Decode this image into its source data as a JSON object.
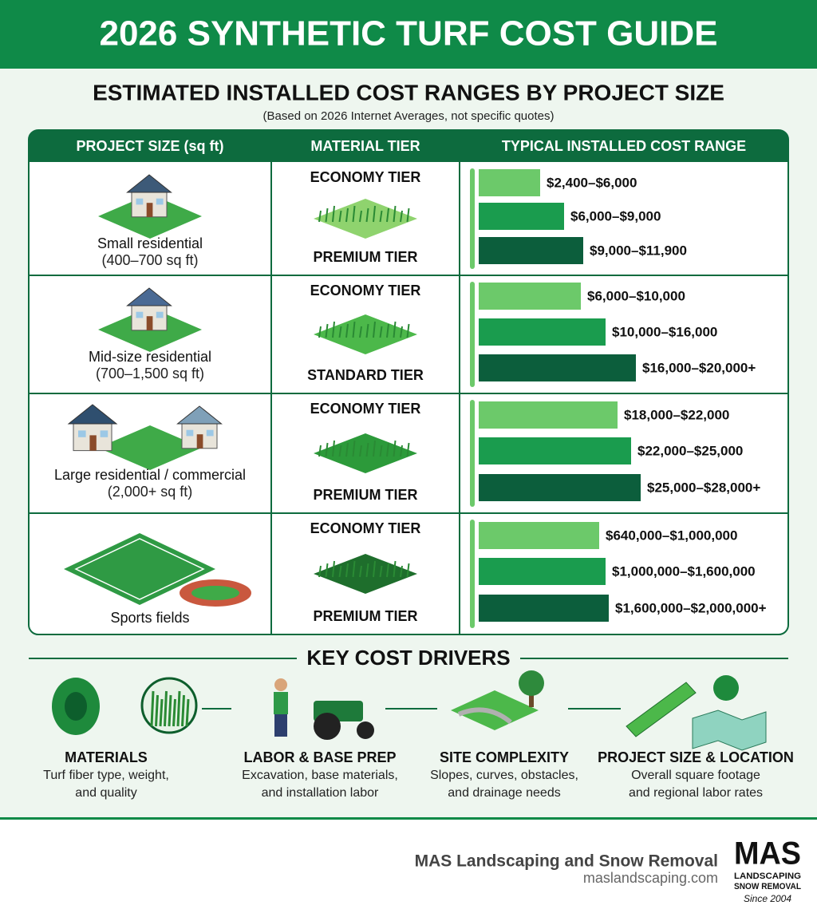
{
  "header": {
    "title": "2026 SYNTHETIC TURF COST GUIDE"
  },
  "table": {
    "title": "ESTIMATED INSTALLED COST RANGES BY PROJECT SIZE",
    "note": "(Based on 2026 Internet Averages, not specific quotes)",
    "columns": [
      "PROJECT SIZE (sq ft)",
      "MATERIAL TIER",
      "TYPICAL INSTALLED COST RANGE"
    ],
    "rows": [
      {
        "size": "Small residential",
        "range": "(400–700 sq ft)",
        "tiers": [
          "ECONOMY TIER",
          "PREMIUM TIER"
        ],
        "costs": [
          "$2,400–$6,000",
          "$6,000–$9,000",
          "$9,000–$11,900"
        ]
      },
      {
        "size": "Mid-size residential",
        "range": "(700–1,500 sq ft)",
        "tiers": [
          "ECONOMY TIER",
          "STANDARD TIER"
        ],
        "costs": [
          "$6,000–$10,000",
          "$10,000–$16,000",
          "$16,000–$20,000+"
        ]
      },
      {
        "size": "Large residential / commercial",
        "range": "(2,000+ sq ft)",
        "tiers": [
          "ECONOMY TIER",
          "PREMIUM TIER"
        ],
        "costs": [
          "$18,000–$22,000",
          "$22,000–$25,000",
          "$25,000–$28,000+"
        ]
      },
      {
        "size": "Sports fields",
        "tiers": [
          "ECONOMY TIER",
          "PREMIUM TIER"
        ],
        "costs": [
          "$640,000–$1,000,000",
          "$1,000,000–$1,600,000",
          "$1,600,000–$2,000,000+"
        ]
      }
    ]
  },
  "drivers": {
    "title": "KEY COST DRIVERS",
    "items": [
      {
        "title": "MATERIALS",
        "lines": [
          "Turf fiber type, weight,",
          "and quality"
        ]
      },
      {
        "title": "LABOR & BASE PREP",
        "lines": [
          "Excavation, base materials,",
          "and installation labor"
        ]
      },
      {
        "title": "SITE COMPLEXITY",
        "lines": [
          "Slopes, curves, obstacles,",
          "and drainage needs"
        ]
      },
      {
        "title": "PROJECT SIZE & LOCATION",
        "lines": [
          "Overall square footage",
          "and regional labor rates"
        ]
      }
    ]
  },
  "footer": {
    "company": "MAS Landscaping and Snow Removal",
    "website": "maslandscaping.com",
    "logo": [
      "MAS",
      "LANDSCAPING",
      "SNOW REMOVAL",
      "Since 2004"
    ]
  }
}
